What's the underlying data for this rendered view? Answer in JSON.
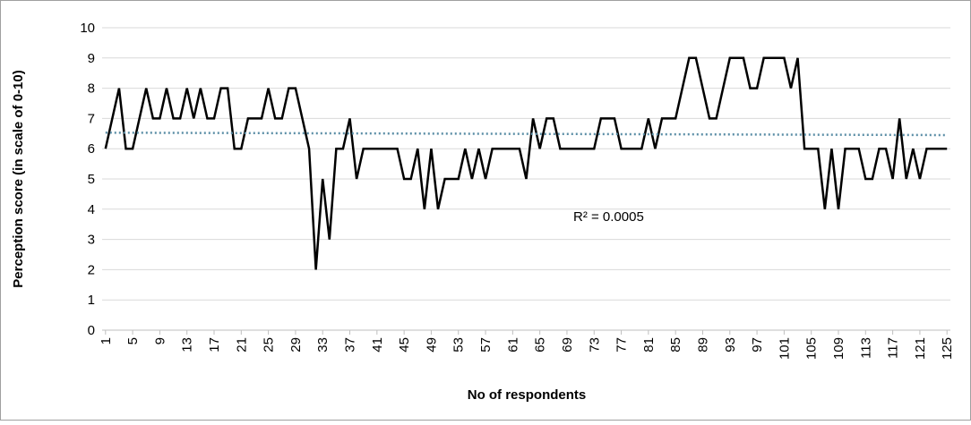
{
  "chart_data": {
    "type": "line",
    "x_label": "No of respondents",
    "y_label": "Perception score (in scale of 0-10)",
    "annotation": "R² = 0.0005",
    "x": [
      1,
      2,
      3,
      4,
      5,
      6,
      7,
      8,
      9,
      10,
      11,
      12,
      13,
      14,
      15,
      16,
      17,
      18,
      19,
      20,
      21,
      22,
      23,
      24,
      25,
      26,
      27,
      28,
      29,
      30,
      31,
      32,
      33,
      34,
      35,
      36,
      37,
      38,
      39,
      40,
      41,
      42,
      43,
      44,
      45,
      46,
      47,
      48,
      49,
      50,
      51,
      52,
      53,
      54,
      55,
      56,
      57,
      58,
      59,
      60,
      61,
      62,
      63,
      64,
      65,
      66,
      67,
      68,
      69,
      70,
      71,
      72,
      73,
      74,
      75,
      76,
      77,
      78,
      79,
      80,
      81,
      82,
      83,
      84,
      85,
      86,
      87,
      88,
      89,
      90,
      91,
      92,
      93,
      94,
      95,
      96,
      97,
      98,
      99,
      100,
      101,
      102,
      103,
      104,
      105,
      106,
      107,
      108,
      109,
      110,
      111,
      112,
      113,
      114,
      115,
      116,
      117,
      118,
      119,
      120,
      121,
      122,
      123,
      124,
      125
    ],
    "series": [
      {
        "name": "Perception score",
        "color": "#000000",
        "values": [
          6,
          7,
          8,
          6,
          6,
          7,
          8,
          7,
          7,
          8,
          7,
          7,
          8,
          7,
          8,
          7,
          7,
          8,
          8,
          6,
          6,
          7,
          7,
          7,
          8,
          7,
          7,
          8,
          8,
          7,
          6,
          2,
          5,
          3,
          6,
          6,
          7,
          5,
          6,
          6,
          6,
          6,
          6,
          6,
          5,
          5,
          6,
          4,
          6,
          4,
          5,
          5,
          5,
          6,
          5,
          6,
          5,
          6,
          6,
          6,
          6,
          6,
          5,
          7,
          6,
          7,
          7,
          6,
          6,
          6,
          6,
          6,
          6,
          7,
          7,
          7,
          6,
          6,
          6,
          6,
          7,
          6,
          7,
          7,
          7,
          8,
          9,
          9,
          8,
          7,
          7,
          8,
          9,
          9,
          9,
          8,
          8,
          9,
          9,
          9,
          9,
          8,
          9,
          6,
          6,
          6,
          4,
          6,
          4,
          6,
          6,
          6,
          5,
          5,
          6,
          6,
          5,
          7,
          5,
          6,
          5,
          6,
          6,
          6,
          6
        ]
      }
    ],
    "trendline": {
      "color": "#5b8ea6",
      "x": [
        1,
        125
      ],
      "values": [
        6.53,
        6.45
      ]
    },
    "xlim": [
      0.5,
      125.5
    ],
    "xticks": [
      1,
      5,
      9,
      13,
      17,
      21,
      25,
      29,
      33,
      37,
      41,
      45,
      49,
      53,
      57,
      61,
      65,
      69,
      73,
      77,
      81,
      85,
      89,
      93,
      97,
      101,
      105,
      109,
      113,
      117,
      121,
      125
    ],
    "ylim": [
      0,
      10
    ],
    "yticks": [
      0,
      1,
      2,
      3,
      4,
      5,
      6,
      7,
      8,
      9,
      10
    ],
    "grid": true
  }
}
